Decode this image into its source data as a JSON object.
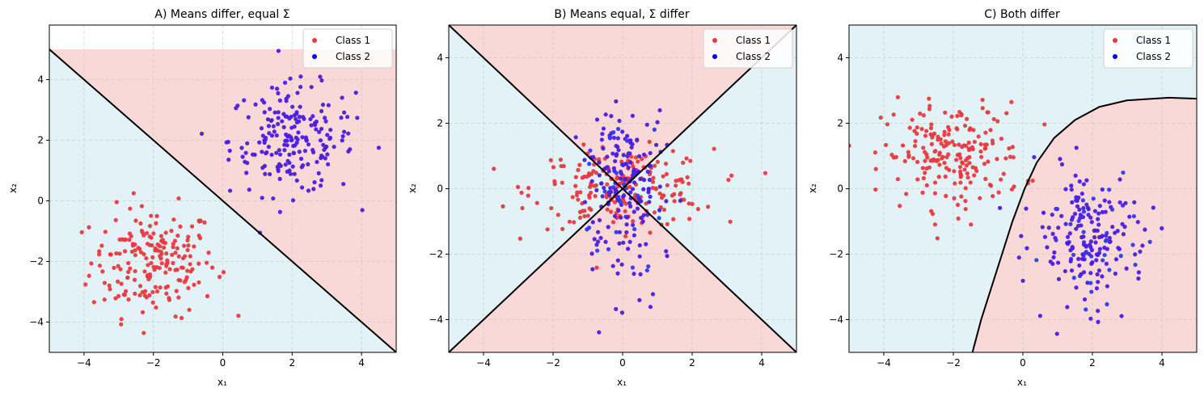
{
  "colors": {
    "class1": "#e8393f",
    "class2": "#4a1ee0",
    "class2_bright": "#2a3cf0",
    "region_class1": "#f9d8d8",
    "region_class2": "#e3f2f6",
    "boundary": "#000000",
    "grid": "#b8c8b8"
  },
  "chart_data": [
    {
      "type": "scatter",
      "title": "A) Means differ, equal Σ",
      "xlabel": "x₁",
      "ylabel": "x₂",
      "xlim": [
        -5,
        5
      ],
      "ylim": [
        -5,
        5.8
      ],
      "xticks": [
        -4,
        -2,
        0,
        2,
        4
      ],
      "yticks": [
        -4,
        -2,
        0,
        2,
        4
      ],
      "grid": true,
      "legend": "top-right",
      "legend_entries": [
        "Class 1",
        "Class 2"
      ],
      "decision_boundary": "line x₂ = -x₁",
      "regions": {
        "class1_side": "upper-right",
        "class2_side": "lower-left"
      },
      "series": [
        {
          "name": "Class 1",
          "center": [
            -2,
            -2
          ],
          "spread": [
            0.9,
            0.9
          ],
          "count": 200
        },
        {
          "name": "Class 2",
          "center": [
            2,
            2
          ],
          "spread": [
            0.9,
            0.9
          ],
          "count": 200
        }
      ]
    },
    {
      "type": "scatter",
      "title": "B) Means equal, Σ differ",
      "xlabel": "x₁",
      "ylabel": "x₂",
      "xlim": [
        -5,
        5
      ],
      "ylim": [
        -5,
        5
      ],
      "xticks": [
        -4,
        -2,
        0,
        2,
        4
      ],
      "yticks": [
        -4,
        -2,
        0,
        2,
        4
      ],
      "grid": true,
      "legend": "top-right",
      "legend_entries": [
        "Class 1",
        "Class 2"
      ],
      "decision_boundary": "lines x₂ = x₁ and x₂ = -x₁",
      "regions": {
        "class1_side": "top and bottom wedges",
        "class2_side": "left and right wedges"
      },
      "series": [
        {
          "name": "Class 1",
          "center": [
            0,
            0
          ],
          "spread": [
            1.3,
            0.6
          ],
          "count": 200
        },
        {
          "name": "Class 2",
          "center": [
            0,
            0
          ],
          "spread": [
            0.6,
            1.3
          ],
          "count": 200
        }
      ]
    },
    {
      "type": "scatter",
      "title": "C) Both differ",
      "xlabel": "x₁",
      "ylabel": "x₂",
      "xlim": [
        -5,
        5
      ],
      "ylim": [
        -5,
        5
      ],
      "xticks": [
        -4,
        -2,
        0,
        2,
        4
      ],
      "yticks": [
        -4,
        -2,
        0,
        2,
        4
      ],
      "grid": true,
      "legend": "top-right",
      "legend_entries": [
        "Class 1",
        "Class 2"
      ],
      "decision_boundary": "curve",
      "boundary_points": [
        [
          -1.45,
          -5
        ],
        [
          -1.2,
          -4
        ],
        [
          -0.9,
          -3
        ],
        [
          -0.6,
          -2
        ],
        [
          -0.3,
          -1
        ],
        [
          0.05,
          0
        ],
        [
          0.4,
          0.8
        ],
        [
          0.9,
          1.55
        ],
        [
          1.5,
          2.1
        ],
        [
          2.2,
          2.5
        ],
        [
          3.0,
          2.7
        ],
        [
          4.2,
          2.78
        ],
        [
          5.0,
          2.75
        ]
      ],
      "regions": {
        "class1_side": "lower-right",
        "class2_side": "upper-left"
      },
      "series": [
        {
          "name": "Class 1",
          "center": [
            -2,
            1
          ],
          "spread": [
            1.0,
            0.8
          ],
          "count": 200
        },
        {
          "name": "Class 2",
          "center": [
            2,
            -1.5
          ],
          "spread": [
            0.8,
            1.0
          ],
          "count": 200
        }
      ]
    }
  ]
}
